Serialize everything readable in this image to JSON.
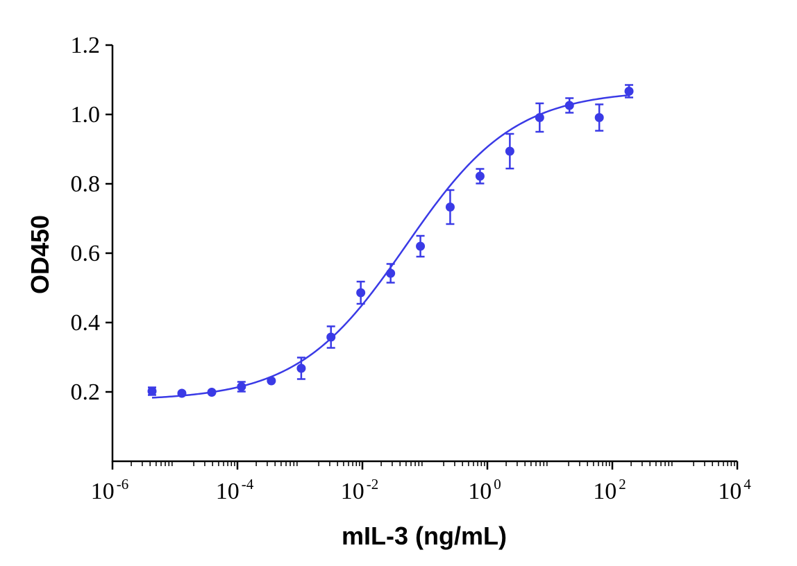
{
  "chart_data": {
    "type": "scatter",
    "title": "",
    "xlabel": "mIL-3 (ng/mL)",
    "ylabel": "OD450",
    "x_scale": "log10",
    "xlim": [
      1e-06,
      10000
    ],
    "ylim": [
      0,
      1.2
    ],
    "x_ticks": [
      {
        "base": "10",
        "exp": "-6",
        "value": 1e-06
      },
      {
        "base": "10",
        "exp": "-4",
        "value": 0.0001
      },
      {
        "base": "10",
        "exp": "-2",
        "value": 0.01
      },
      {
        "base": "10",
        "exp": "0",
        "value": 1
      },
      {
        "base": "10",
        "exp": "2",
        "value": 100
      },
      {
        "base": "10",
        "exp": "4",
        "value": 10000
      }
    ],
    "y_ticks": [
      {
        "label": "0.2",
        "value": 0.2
      },
      {
        "label": "0.4",
        "value": 0.4
      },
      {
        "label": "0.6",
        "value": 0.6
      },
      {
        "label": "0.8",
        "value": 0.8
      },
      {
        "label": "1.0",
        "value": 1.0
      },
      {
        "label": "1.2",
        "value": 1.2
      }
    ],
    "grid": false,
    "legend": "none",
    "color": "#3a3ae6",
    "series": [
      {
        "points": [
          {
            "x": 4.3e-06,
            "y": 0.202,
            "err": 0.011
          },
          {
            "x": 1.29e-05,
            "y": 0.196,
            "err": 0
          },
          {
            "x": 3.88e-05,
            "y": 0.199,
            "err": 0
          },
          {
            "x": 0.000116,
            "y": 0.215,
            "err": 0.014
          },
          {
            "x": 0.000349,
            "y": 0.232,
            "err": 0
          },
          {
            "x": 0.00105,
            "y": 0.268,
            "err": 0.031
          },
          {
            "x": 0.00314,
            "y": 0.358,
            "err": 0.031
          },
          {
            "x": 0.00942,
            "y": 0.486,
            "err": 0.032
          },
          {
            "x": 0.0283,
            "y": 0.542,
            "err": 0.027
          },
          {
            "x": 0.0848,
            "y": 0.62,
            "err": 0.03
          },
          {
            "x": 0.254,
            "y": 0.733,
            "err": 0.049
          },
          {
            "x": 0.763,
            "y": 0.822,
            "err": 0.021
          },
          {
            "x": 2.29,
            "y": 0.894,
            "err": 0.05
          },
          {
            "x": 6.87,
            "y": 0.991,
            "err": 0.041
          },
          {
            "x": 20.6,
            "y": 1.026,
            "err": 0.021
          },
          {
            "x": 61.8,
            "y": 0.991,
            "err": 0.038
          },
          {
            "x": 185,
            "y": 1.067,
            "err": 0.018
          }
        ],
        "fit": {
          "model": "4PL",
          "bottom": 0.175,
          "top": 1.07,
          "ec50": 0.05,
          "hill": 0.5,
          "x_range": [
            4.3e-06,
            185
          ]
        }
      }
    ]
  }
}
